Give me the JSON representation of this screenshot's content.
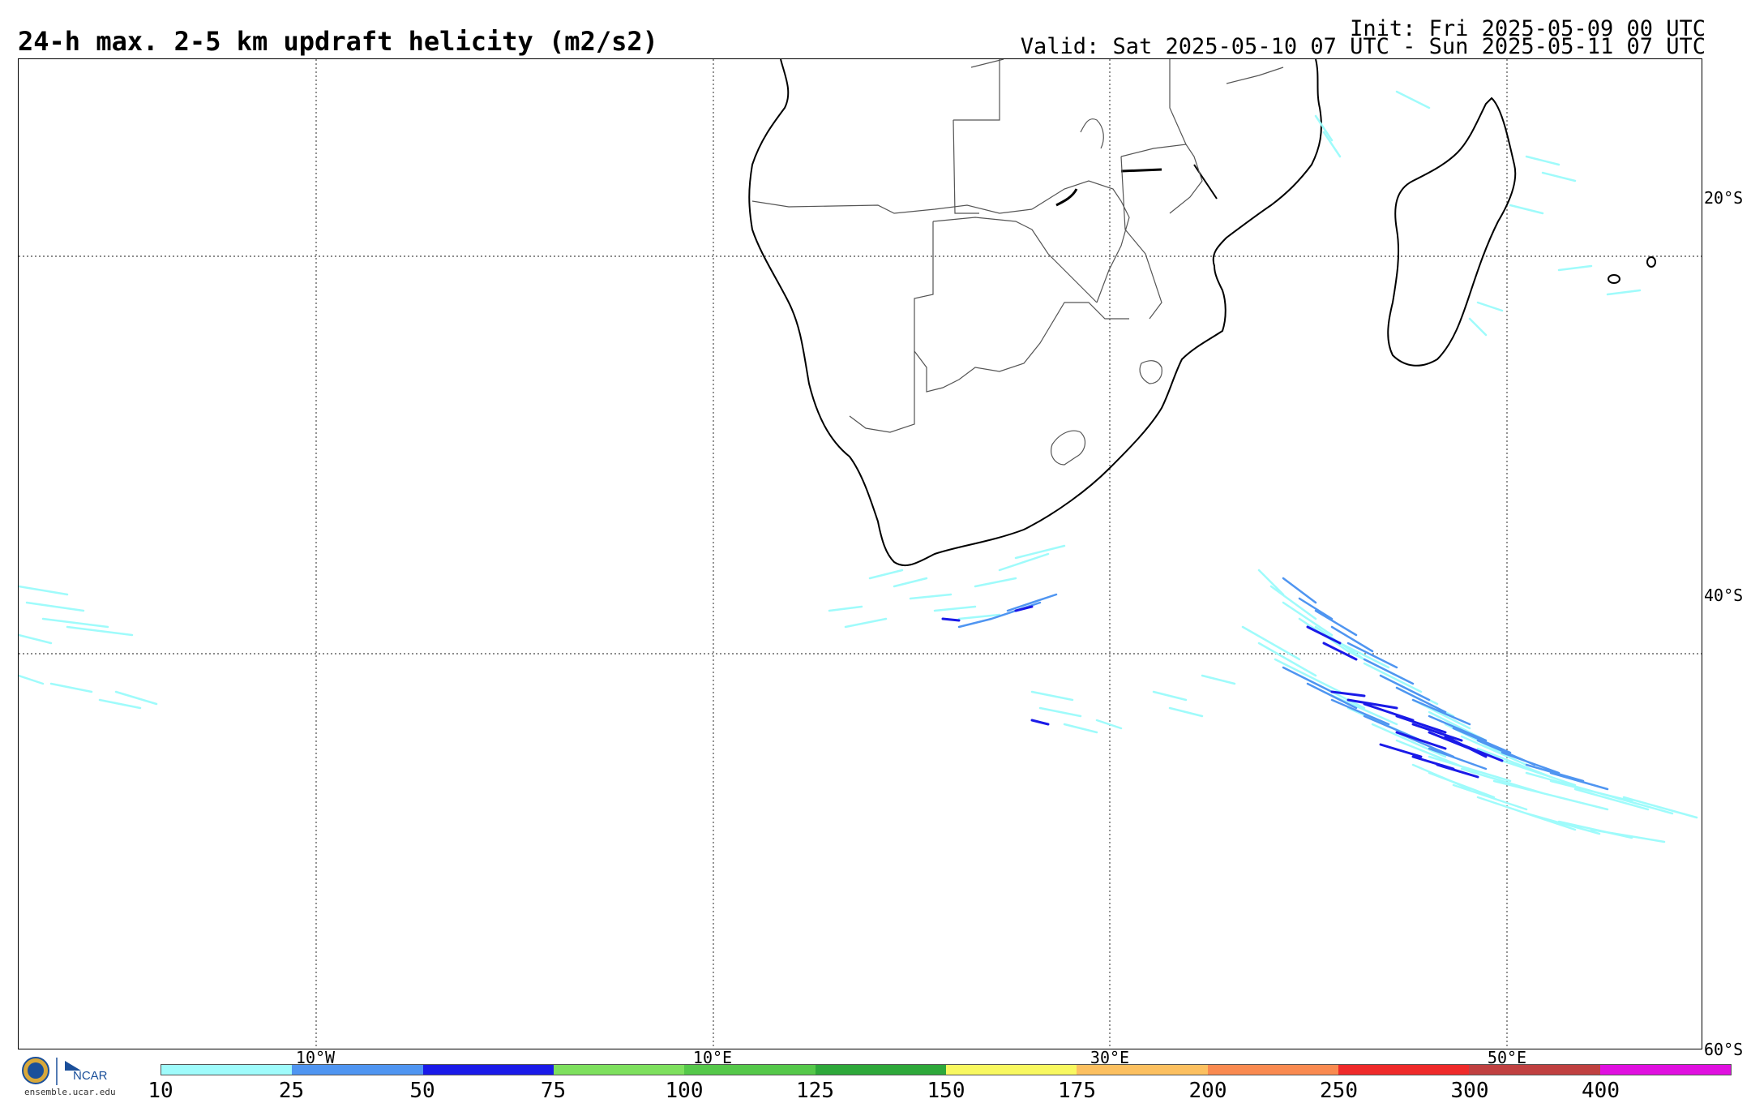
{
  "header": {
    "title": "24-h max. 2-5 km updraft helicity (m2/s2)",
    "init": "Init: Fri 2025-05-09 00 UTC",
    "valid": "Valid: Sat 2025-05-10 07 UTC - Sun 2025-05-11 07 UTC"
  },
  "map": {
    "lat_labels": [
      "20°S",
      "40°S",
      "60°S"
    ],
    "lon_labels": [
      "10°W",
      "10°E",
      "30°E",
      "50°E"
    ],
    "land_color": "#ffffff",
    "coast_color": "#000000",
    "border_color": "#555555",
    "grid_style": "dotted"
  },
  "colorbar": {
    "labels": [
      "10",
      "25",
      "50",
      "75",
      "100",
      "125",
      "150",
      "175",
      "200",
      "250",
      "300",
      "400"
    ],
    "colors": [
      "#9ffbfb",
      "#4f95f1",
      "#1a1ae8",
      "#7ee05e",
      "#55c84a",
      "#2ea83a",
      "#f8f860",
      "#fcc060",
      "#f98a50",
      "#ef2a2a",
      "#c04040",
      "#e010e0"
    ]
  },
  "logo": {
    "org": "NCAR",
    "url": "ensemble.ucar.edu"
  }
}
